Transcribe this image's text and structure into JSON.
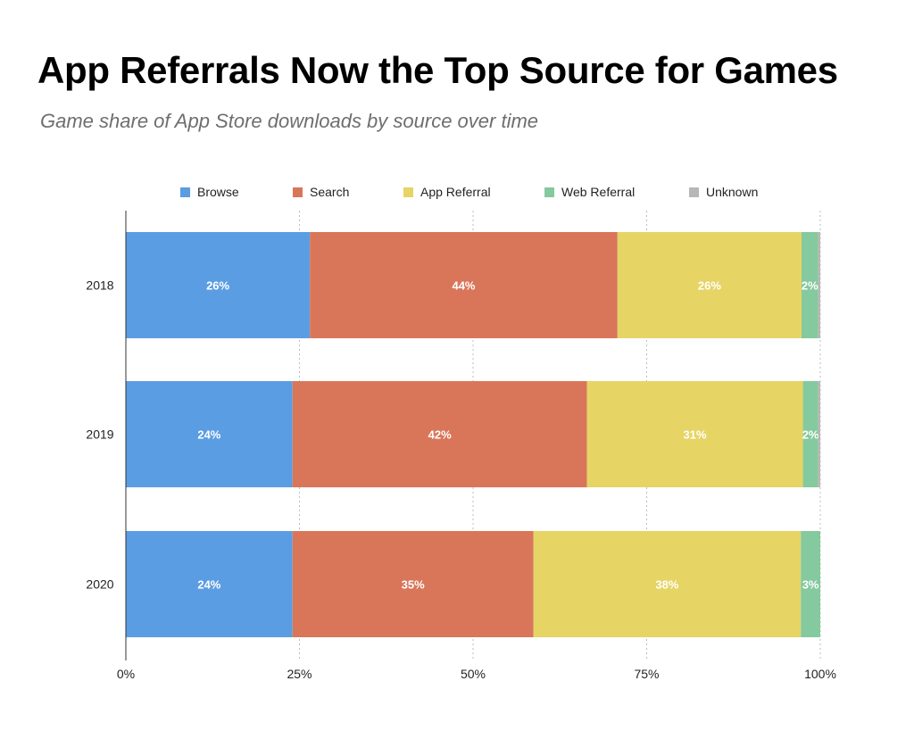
{
  "title": "App Referrals Now the Top Source for Games",
  "subtitle": "Game share of App Store downloads by source over time",
  "chart_data": {
    "type": "bar",
    "orientation": "horizontal",
    "stacked": true,
    "categories": [
      "2018",
      "2019",
      "2020"
    ],
    "series": [
      {
        "name": "Browse",
        "color": "#5b9de3",
        "values": [
          26.5,
          24,
          24
        ],
        "labels": [
          "26%",
          "24%",
          "24%"
        ]
      },
      {
        "name": "Search",
        "color": "#d9765a",
        "values": [
          44.3,
          42.4,
          34.7
        ],
        "labels": [
          "44%",
          "42%",
          "35%"
        ]
      },
      {
        "name": "App Referral",
        "color": "#e6d465",
        "values": [
          26.5,
          31.1,
          38.5
        ],
        "labels": [
          "26%",
          "31%",
          "38%"
        ]
      },
      {
        "name": "Web Referral",
        "color": "#85c99e",
        "values": [
          2.4,
          2.2,
          2.8
        ],
        "labels": [
          "2%",
          "2%",
          "3%"
        ]
      },
      {
        "name": "Unknown",
        "color": "#b7b7b7",
        "values": [
          0.3,
          0.3,
          0
        ],
        "labels": [
          "",
          "",
          ""
        ]
      }
    ],
    "x_ticks": [
      "0%",
      "25%",
      "50%",
      "75%",
      "100%"
    ],
    "xlim": [
      0,
      100
    ],
    "grid": true,
    "legend_position": "top"
  }
}
